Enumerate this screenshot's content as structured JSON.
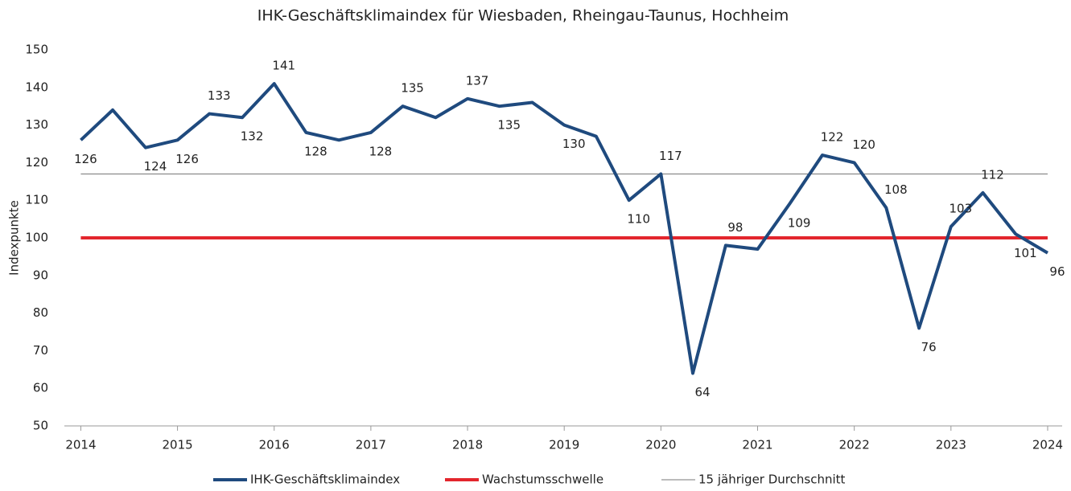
{
  "chart_data": {
    "type": "line",
    "title": "IHK-Geschäftsklimaindex für Wiesbaden, Rheingau-Taunus, Hochheim",
    "y_label": "Indexpunkte",
    "xlim": [
      2013.83,
      2024.15
    ],
    "xticks": [
      2014,
      2015,
      2016,
      2017,
      2018,
      2019,
      2020,
      2021,
      2022,
      2023,
      2024
    ],
    "ylim": [
      50,
      150
    ],
    "yticks": [
      50,
      60,
      70,
      80,
      90,
      100,
      110,
      120,
      130,
      140,
      150
    ],
    "series": [
      {
        "name": "IHK-Geschäftsklimaindex",
        "color": "#1f4a7e",
        "width": 4,
        "x": [
          2014,
          2014.33,
          2014.67,
          2015,
          2015.33,
          2015.67,
          2016,
          2016.33,
          2016.67,
          2017,
          2017.33,
          2017.67,
          2018,
          2018.33,
          2018.67,
          2019,
          2019.33,
          2019.67,
          2020,
          2020.33,
          2020.67,
          2021,
          2021.33,
          2021.67,
          2022,
          2022.33,
          2022.67,
          2023,
          2023.33,
          2023.67,
          2024
        ],
        "values": [
          126,
          134,
          124,
          126,
          133,
          132,
          141,
          128,
          126,
          128,
          135,
          132,
          137,
          135,
          136,
          130,
          127,
          110,
          117,
          64,
          98,
          97,
          109,
          122,
          120,
          108,
          76,
          103,
          112,
          101,
          96
        ],
        "value_labels": [
          126,
          null,
          124,
          126,
          133,
          132,
          141,
          128,
          null,
          128,
          135,
          null,
          137,
          135,
          null,
          130,
          null,
          110,
          117,
          64,
          98,
          null,
          109,
          122,
          120,
          108,
          76,
          103,
          112,
          101,
          96
        ]
      },
      {
        "name": "Wachstumsschwelle",
        "color": "#e3262d",
        "width": 4,
        "x": [
          2014,
          2024
        ],
        "values": [
          100,
          100
        ]
      },
      {
        "name": "15 jähriger Durchschnitt",
        "color": "#777777",
        "width": 1,
        "x": [
          2014,
          2024
        ],
        "values": [
          117,
          117
        ]
      }
    ]
  }
}
